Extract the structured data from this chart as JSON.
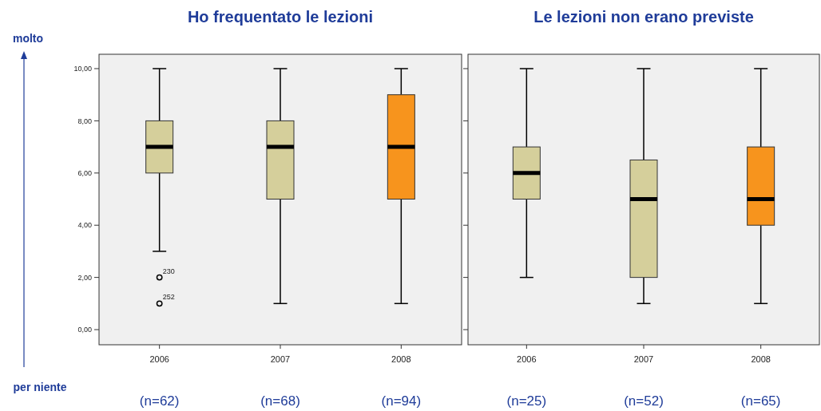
{
  "chart_data": [
    {
      "type": "box",
      "title": "Ho frequentato le lezioni",
      "categories": [
        "2006",
        "2007",
        "2008"
      ],
      "colors": [
        "#d5cf9b",
        "#d5cf9b",
        "#f7941d"
      ],
      "boxes": [
        {
          "low": 3,
          "q1": 6,
          "median": 7,
          "q3": 8,
          "high": 10,
          "outliers": [
            2,
            1
          ]
        },
        {
          "low": 1,
          "q1": 5,
          "median": 7,
          "q3": 8,
          "high": 10
        },
        {
          "low": 1,
          "q1": 5,
          "median": 7,
          "q3": 9,
          "high": 10
        }
      ],
      "ylim": [
        -0.58,
        10.55
      ],
      "yticks": [
        {
          "value": 0,
          "label": "0,00"
        },
        {
          "value": 2,
          "label": "2,00"
        },
        {
          "value": 4,
          "label": "4,00"
        },
        {
          "value": 6,
          "label": "6,00"
        },
        {
          "value": 8,
          "label": "8,00"
        },
        {
          "value": 10,
          "label": "10,00"
        }
      ],
      "grid": false,
      "annotations": [
        "molto",
        "per niente",
        "230",
        "252",
        "(n=62)",
        "(n=68)",
        "(n=94)"
      ]
    },
    {
      "type": "box",
      "title": "Le lezioni non erano previste",
      "categories": [
        "2006",
        "2007",
        "2008"
      ],
      "colors": [
        "#d5cf9b",
        "#d5cf9b",
        "#f7941d"
      ],
      "boxes": [
        {
          "low": 2,
          "q1": 5,
          "median": 6,
          "q3": 7,
          "high": 10
        },
        {
          "low": 1,
          "q1": 2,
          "median": 5,
          "q3": 6.5,
          "high": 10
        },
        {
          "low": 1,
          "q1": 4,
          "median": 5,
          "q3": 7,
          "high": 10
        }
      ],
      "ylim": [
        -0.58,
        10.55
      ],
      "yticks": [
        {
          "value": 0,
          "label": null
        },
        {
          "value": 2,
          "label": null
        },
        {
          "value": 4,
          "label": null
        },
        {
          "value": 6,
          "label": null
        },
        {
          "value": 8,
          "label": null
        },
        {
          "value": 10,
          "label": null
        }
      ],
      "grid": false,
      "tick_labels": "x",
      "annotations": [
        "(n=25)",
        "(n=52)",
        "(n=65)"
      ]
    }
  ]
}
